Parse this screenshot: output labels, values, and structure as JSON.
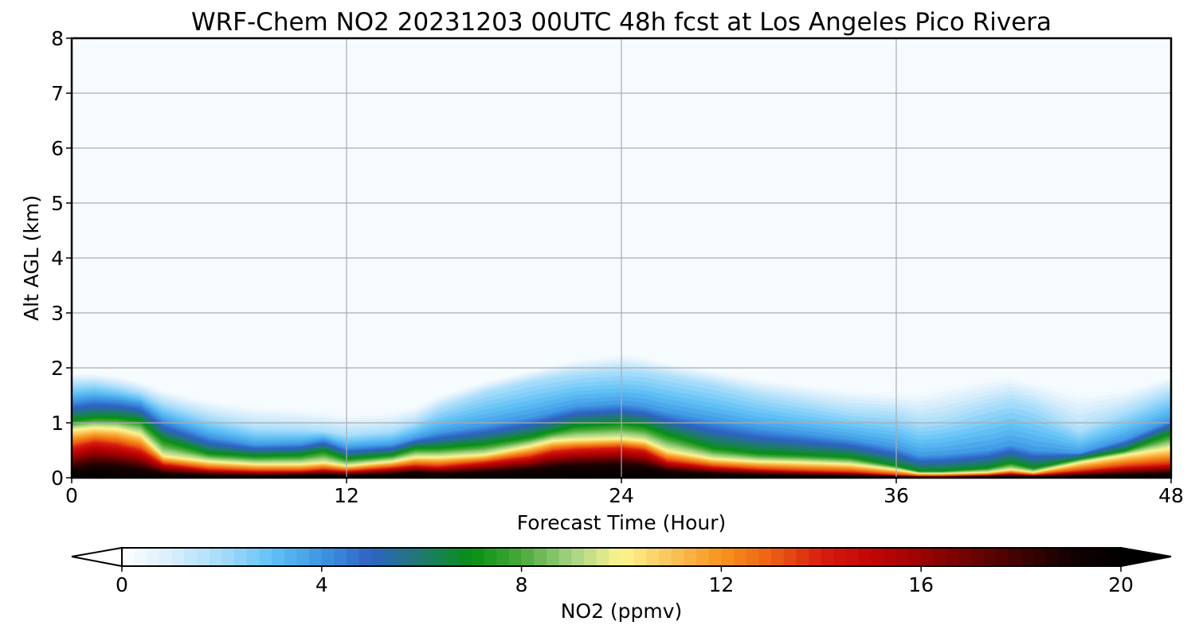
{
  "chart_data": {
    "type": "heatmap",
    "title": "WRF-Chem NO2  20231203 00UTC 48h fcst at Los Angeles Pico Rivera",
    "xlabel": "Forecast Time (Hour)",
    "ylabel": "Alt AGL (km)",
    "xlim": [
      0,
      48
    ],
    "ylim": [
      0,
      8
    ],
    "xticks": [
      0,
      12,
      24,
      36,
      48
    ],
    "yticks": [
      0,
      1,
      2,
      3,
      4,
      5,
      6,
      7,
      8
    ],
    "grid": true,
    "colorbar": {
      "label": "NO2  (ppmv)",
      "vmin": 0,
      "vmax": 20,
      "ticks": [
        0,
        4,
        8,
        12,
        16,
        20
      ],
      "extend": "both",
      "stops": [
        {
          "v": 0,
          "c": "#ffffff"
        },
        {
          "v": 1,
          "c": "#d8eefc"
        },
        {
          "v": 2,
          "c": "#a6dcfa"
        },
        {
          "v": 3,
          "c": "#62c2f6"
        },
        {
          "v": 4,
          "c": "#3d95e3"
        },
        {
          "v": 5,
          "c": "#2f62c4"
        },
        {
          "v": 6,
          "c": "#1f7a6e"
        },
        {
          "v": 7,
          "c": "#079012"
        },
        {
          "v": 8,
          "c": "#4aa93a"
        },
        {
          "v": 9,
          "c": "#a5d382"
        },
        {
          "v": 10,
          "c": "#fdf58f"
        },
        {
          "v": 11,
          "c": "#f9c45a"
        },
        {
          "v": 12,
          "c": "#f8931b"
        },
        {
          "v": 13,
          "c": "#ec6015"
        },
        {
          "v": 14,
          "c": "#d71c0e"
        },
        {
          "v": 15,
          "c": "#c20505"
        },
        {
          "v": 16,
          "c": "#9c0303"
        },
        {
          "v": 17,
          "c": "#6d0303"
        },
        {
          "v": 18,
          "c": "#3e0202"
        },
        {
          "v": 19,
          "c": "#150000"
        },
        {
          "v": 20,
          "c": "#000000"
        }
      ]
    },
    "profile_hours": [
      0,
      1,
      2,
      3,
      4,
      6,
      8,
      10,
      11,
      12,
      14,
      15,
      16,
      18,
      20,
      21,
      22,
      24,
      25,
      26,
      28,
      30,
      32,
      34,
      36,
      37,
      38,
      40,
      41,
      42,
      44,
      46,
      48
    ],
    "profile_contour_values": [
      0.3,
      2,
      4,
      7,
      10,
      14,
      19
    ],
    "profile_contour_heights_km": [
      [
        1.9,
        1.9,
        1.85,
        1.75,
        1.6,
        1.4,
        1.3,
        1.25,
        1.2,
        1.15,
        1.2,
        1.3,
        1.5,
        1.75,
        1.95,
        2.05,
        2.15,
        2.25,
        2.2,
        2.1,
        1.95,
        1.8,
        1.7,
        1.6,
        1.55,
        1.55,
        1.65,
        1.8,
        1.85,
        1.75,
        1.55,
        1.6,
        1.85
      ],
      [
        1.7,
        1.72,
        1.65,
        1.55,
        1.35,
        1.1,
        0.9,
        0.88,
        0.85,
        0.78,
        0.85,
        1.0,
        1.25,
        1.55,
        1.75,
        1.82,
        1.88,
        1.95,
        1.92,
        1.85,
        1.7,
        1.5,
        1.35,
        1.2,
        1.15,
        1.0,
        1.05,
        1.3,
        1.4,
        1.3,
        0.85,
        1.2,
        1.55
      ],
      [
        1.4,
        1.45,
        1.42,
        1.35,
        1.05,
        0.75,
        0.6,
        0.62,
        0.7,
        0.55,
        0.6,
        0.72,
        0.82,
        0.95,
        1.1,
        1.2,
        1.3,
        1.35,
        1.3,
        1.2,
        1.05,
        0.9,
        0.8,
        0.7,
        0.55,
        0.4,
        0.42,
        0.5,
        0.6,
        0.5,
        0.45,
        0.7,
        1.05
      ],
      [
        1.05,
        1.1,
        1.1,
        1.05,
        0.7,
        0.45,
        0.4,
        0.42,
        0.5,
        0.35,
        0.42,
        0.55,
        0.55,
        0.62,
        0.75,
        0.85,
        0.95,
        1.0,
        0.95,
        0.8,
        0.55,
        0.45,
        0.42,
        0.38,
        0.22,
        0.12,
        0.12,
        0.18,
        0.28,
        0.18,
        0.35,
        0.5,
        0.82
      ],
      [
        0.88,
        0.92,
        0.9,
        0.8,
        0.4,
        0.3,
        0.25,
        0.25,
        0.28,
        0.22,
        0.3,
        0.38,
        0.38,
        0.42,
        0.58,
        0.68,
        0.7,
        0.72,
        0.68,
        0.5,
        0.35,
        0.3,
        0.28,
        0.25,
        0.15,
        0.08,
        0.08,
        0.1,
        0.15,
        0.1,
        0.28,
        0.42,
        0.55
      ],
      [
        0.55,
        0.65,
        0.6,
        0.5,
        0.25,
        0.15,
        0.12,
        0.12,
        0.15,
        0.12,
        0.18,
        0.22,
        0.2,
        0.28,
        0.38,
        0.48,
        0.52,
        0.55,
        0.5,
        0.3,
        0.2,
        0.15,
        0.12,
        0.1,
        0.05,
        0.03,
        0.03,
        0.05,
        0.08,
        0.05,
        0.12,
        0.2,
        0.25
      ],
      [
        0.15,
        0.22,
        0.2,
        0.15,
        0.08,
        0.05,
        0.04,
        0.05,
        0.06,
        0.05,
        0.07,
        0.1,
        0.08,
        0.1,
        0.15,
        0.2,
        0.22,
        0.24,
        0.2,
        0.12,
        0.08,
        0.06,
        0.05,
        0.04,
        0.02,
        0.01,
        0.01,
        0.02,
        0.03,
        0.02,
        0.04,
        0.06,
        0.08
      ]
    ]
  }
}
